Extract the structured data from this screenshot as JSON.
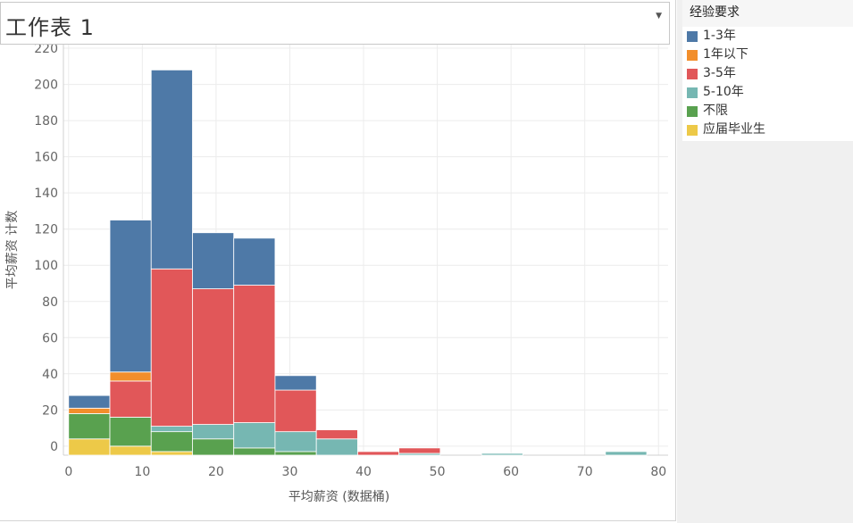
{
  "sheet": {
    "title": "工作表 1"
  },
  "legend": {
    "title": "经验要求",
    "items": [
      {
        "label": "1-3年",
        "color": "#4e79a7"
      },
      {
        "label": "1年以下",
        "color": "#f28e2b"
      },
      {
        "label": "3-5年",
        "color": "#e15759"
      },
      {
        "label": "5-10年",
        "color": "#76b7b2"
      },
      {
        "label": "不限",
        "color": "#59a14f"
      },
      {
        "label": "应届毕业生",
        "color": "#edc948"
      }
    ]
  },
  "chart_data": {
    "type": "bar",
    "stacked": true,
    "xlabel": "平均薪资 (数据桶)",
    "ylabel": "平均薪资 计数",
    "x_ticks": [
      0,
      10,
      20,
      30,
      40,
      50,
      60,
      70,
      80
    ],
    "y_ticks": [
      0,
      20,
      40,
      60,
      80,
      100,
      120,
      140,
      160,
      180,
      200,
      220
    ],
    "xlim": [
      -0.7,
      81.3
    ],
    "ylim": [
      -5,
      222
    ],
    "bin_width": 5.6,
    "bin_starts": [
      0,
      5.6,
      11.2,
      16.8,
      22.4,
      28.0,
      33.6,
      39.2,
      44.8,
      50.4,
      56.0,
      61.6,
      67.2,
      72.8
    ],
    "grid": true,
    "legend_position": "right",
    "series": [
      {
        "name": "应届毕业生",
        "values": [
          9,
          5,
          2,
          0,
          0,
          0,
          0,
          0,
          0,
          0,
          0,
          0,
          0,
          0
        ]
      },
      {
        "name": "不限",
        "values": [
          14,
          16,
          11,
          9,
          4,
          2,
          0,
          0,
          0,
          0,
          0,
          0,
          0,
          0
        ]
      },
      {
        "name": "5-10年",
        "values": [
          0,
          0,
          3,
          8,
          14,
          11,
          9,
          0,
          1,
          0,
          1,
          0,
          0,
          2
        ]
      },
      {
        "name": "3-5年",
        "values": [
          0,
          20,
          87,
          75,
          76,
          23,
          5,
          2,
          3,
          0,
          0,
          0,
          0,
          0
        ]
      },
      {
        "name": "1年以下",
        "values": [
          3,
          5,
          0,
          0,
          0,
          0,
          0,
          0,
          0,
          0,
          0,
          0,
          0,
          0
        ]
      },
      {
        "name": "1-3年",
        "values": [
          7,
          84,
          110,
          31,
          26,
          8,
          0,
          0,
          0,
          0,
          0,
          0,
          0,
          0
        ]
      }
    ]
  }
}
